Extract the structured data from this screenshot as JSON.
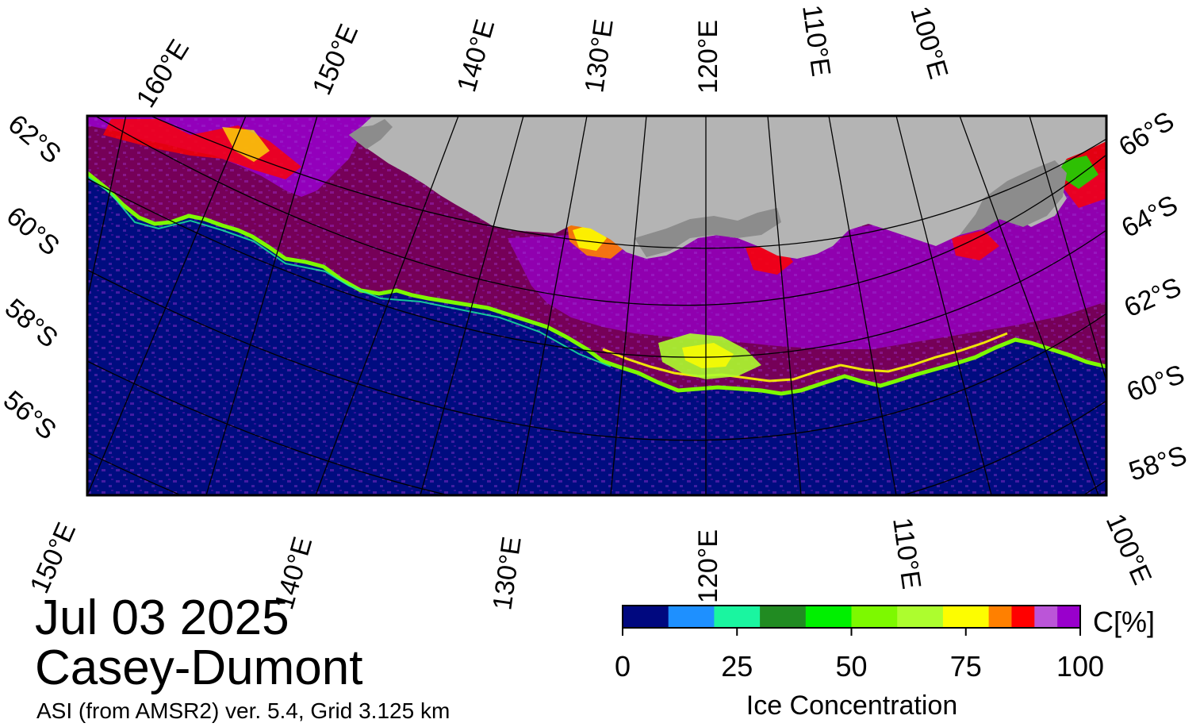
{
  "map": {
    "top_longitude_labels": [
      "160°E",
      "150°E",
      "140°E",
      "130°E",
      "120°E",
      "110°E",
      "100°E"
    ],
    "bottom_longitude_labels": [
      "150°E",
      "140°E",
      "130°E",
      "120°E",
      "110°E",
      "100°E"
    ],
    "left_latitude_labels": [
      "62°S",
      "60°S",
      "58°S",
      "56°S"
    ],
    "right_latitude_labels": [
      "66°S",
      "64°S",
      "62°S",
      "60°S",
      "58°S"
    ],
    "colors": {
      "open_water": "#000c80",
      "land": "#b4b4b4",
      "ice_shelf": "#8c8c8c",
      "high_concentration": "#760058",
      "full_concentration": "#9900cc"
    }
  },
  "title": {
    "date": "Jul 03 2025",
    "region": "Casey-Dumont",
    "source": "ASI (from AMSR2) ver. 5.4,  Grid 3.125 km"
  },
  "colorbar": {
    "unit_label": "C[%]",
    "title": "Ice Concentration",
    "ticks": [
      "0",
      "25",
      "50",
      "75",
      "100"
    ],
    "range": [
      0,
      100
    ],
    "bins": [
      {
        "from": 0,
        "to": 10,
        "color": "#00087f"
      },
      {
        "from": 10,
        "to": 20,
        "color": "#1e90ff"
      },
      {
        "from": 20,
        "to": 30,
        "color": "#1af5a0"
      },
      {
        "from": 30,
        "to": 40,
        "color": "#218b22"
      },
      {
        "from": 40,
        "to": 50,
        "color": "#00f000"
      },
      {
        "from": 50,
        "to": 60,
        "color": "#7df900"
      },
      {
        "from": 60,
        "to": 70,
        "color": "#adfd2e"
      },
      {
        "from": 70,
        "to": 80,
        "color": "#fdfd00"
      },
      {
        "from": 80,
        "to": 85,
        "color": "#ff8000"
      },
      {
        "from": 85,
        "to": 90,
        "color": "#ff0000"
      },
      {
        "from": 90,
        "to": 95,
        "color": "#bb55d8"
      },
      {
        "from": 95,
        "to": 100,
        "color": "#9900cc"
      }
    ]
  }
}
